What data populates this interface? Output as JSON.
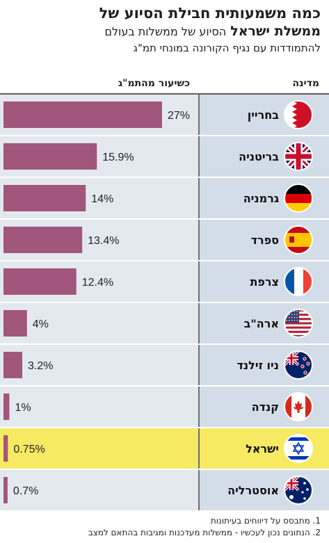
{
  "header": {
    "title_line1": "כמה משמעותית חבילת הסיוע של",
    "title_line2_bold": "ממשלת ישראל",
    "title_line2_regular": "הסיוע של ממשלות בעולם",
    "subtitle": "להתמודדות עם נגיף הקורונה במונחי תמ\"ג"
  },
  "columns": {
    "country": "מדינה",
    "value": "כשיעור מהתמ\"ג"
  },
  "footnotes": [
    "1. מתבסס על דיווחים בעיתונות",
    "2. הנתונים נכון לעכשיו - ממשלות מעדכנות ומגיבות בהתאם למצב"
  ],
  "colors": {
    "bar": "#a1567c",
    "row_band": "#e4e9ef",
    "country_band": "#d3dde7",
    "highlight": "#f5ea62",
    "divider": "#6f6f6f"
  },
  "chart_data": {
    "type": "bar",
    "orientation": "horizontal",
    "unit": "%",
    "categories": [
      "בחריין",
      "בריטניה",
      "גרמניה",
      "ספרד",
      "צרפת",
      "ארה\"ב",
      "ניו זילנד",
      "קנדה",
      "ישראל",
      "אוסטרליה"
    ],
    "values": [
      27,
      15.9,
      14,
      13.4,
      12.4,
      4,
      3.2,
      1,
      0.75,
      0.7
    ],
    "labels": [
      "27%",
      "15.9%",
      "14%",
      "13.4%",
      "12.4%",
      "4%",
      "3.2%",
      "1%",
      "0.75%",
      "0.7%"
    ],
    "flags": [
      "bahrain-flag-icon",
      "uk-flag-icon",
      "germany-flag-icon",
      "spain-flag-icon",
      "france-flag-icon",
      "usa-flag-icon",
      "new-zealand-flag-icon",
      "canada-flag-icon",
      "israel-flag-icon",
      "australia-flag-icon"
    ],
    "highlight_index": 8,
    "xlim": [
      0,
      27
    ]
  }
}
